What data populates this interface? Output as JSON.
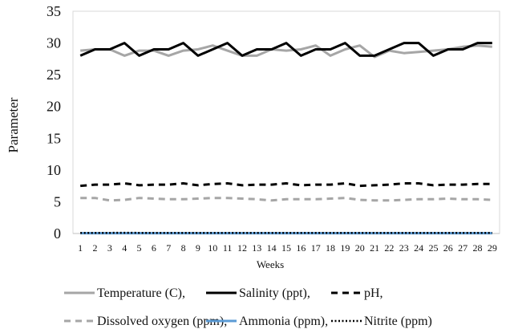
{
  "chart_data": {
    "type": "line",
    "title": "",
    "xlabel": "Weeks",
    "ylabel": "Parameter",
    "ylim": [
      0,
      35
    ],
    "yticks": [
      0,
      5,
      10,
      15,
      20,
      25,
      30,
      35
    ],
    "grid": false,
    "legend_position": "bottom",
    "x": [
      1,
      2,
      3,
      4,
      5,
      6,
      7,
      8,
      9,
      10,
      11,
      12,
      13,
      14,
      15,
      16,
      17,
      18,
      19,
      20,
      21,
      22,
      23,
      24,
      25,
      26,
      27,
      28,
      29
    ],
    "series": [
      {
        "name": "Temperature (C),",
        "color": "#a6a6a6",
        "dash": "solid",
        "values": [
          28.8,
          29,
          29,
          28,
          28.8,
          28.8,
          28,
          28.8,
          29,
          29.6,
          28.8,
          28,
          28,
          29,
          28.8,
          29,
          29.6,
          28,
          29,
          29.6,
          27.8,
          28.8,
          28.4,
          28.6,
          28.8,
          29,
          29.4,
          29.6,
          29.4
        ]
      },
      {
        "name": "Salinity (ppt),",
        "color": "#000000",
        "dash": "solid",
        "values": [
          28,
          29,
          29,
          30,
          28,
          29,
          29,
          30,
          28,
          29,
          30,
          28,
          29,
          29,
          30,
          28,
          29,
          29,
          30,
          28,
          28,
          29,
          30,
          30,
          28,
          29,
          29,
          30,
          30
        ]
      },
      {
        "name": "pH,",
        "color": "#000000",
        "dash": "dashed",
        "values": [
          7.5,
          7.7,
          7.7,
          7.9,
          7.6,
          7.7,
          7.7,
          7.9,
          7.6,
          7.8,
          7.9,
          7.6,
          7.7,
          7.7,
          7.9,
          7.6,
          7.7,
          7.7,
          7.9,
          7.5,
          7.6,
          7.7,
          7.9,
          7.9,
          7.6,
          7.7,
          7.7,
          7.8,
          7.8
        ]
      },
      {
        "name": "Dissolved oxygen (ppm),",
        "color": "#a6a6a6",
        "dash": "dashed",
        "values": [
          5.6,
          5.6,
          5.2,
          5.3,
          5.6,
          5.5,
          5.4,
          5.4,
          5.5,
          5.6,
          5.6,
          5.5,
          5.4,
          5.2,
          5.4,
          5.4,
          5.4,
          5.5,
          5.6,
          5.3,
          5.2,
          5.2,
          5.3,
          5.4,
          5.4,
          5.5,
          5.4,
          5.4,
          5.3
        ]
      },
      {
        "name": "Ammonia (ppm),",
        "color": "#5b9bd5",
        "dash": "solid",
        "values": [
          0.05,
          0.05,
          0.05,
          0.05,
          0.05,
          0.05,
          0.05,
          0.05,
          0.05,
          0.05,
          0.05,
          0.05,
          0.05,
          0.05,
          0.05,
          0.05,
          0.05,
          0.05,
          0.05,
          0.05,
          0.05,
          0.05,
          0.05,
          0.05,
          0.05,
          0.05,
          0.05,
          0.05,
          0.05
        ]
      },
      {
        "name": "Nitrite (ppm)",
        "color": "#000000",
        "dash": "dotted",
        "values": [
          0.1,
          0.1,
          0.1,
          0.12,
          0.1,
          0.1,
          0.1,
          0.1,
          0.1,
          0.1,
          0.1,
          0.1,
          0.1,
          0.1,
          0.1,
          0.1,
          0.1,
          0.1,
          0.1,
          0.1,
          0.1,
          0.1,
          0.1,
          0.1,
          0.1,
          0.1,
          0.1,
          0.1,
          0.1
        ]
      }
    ]
  }
}
